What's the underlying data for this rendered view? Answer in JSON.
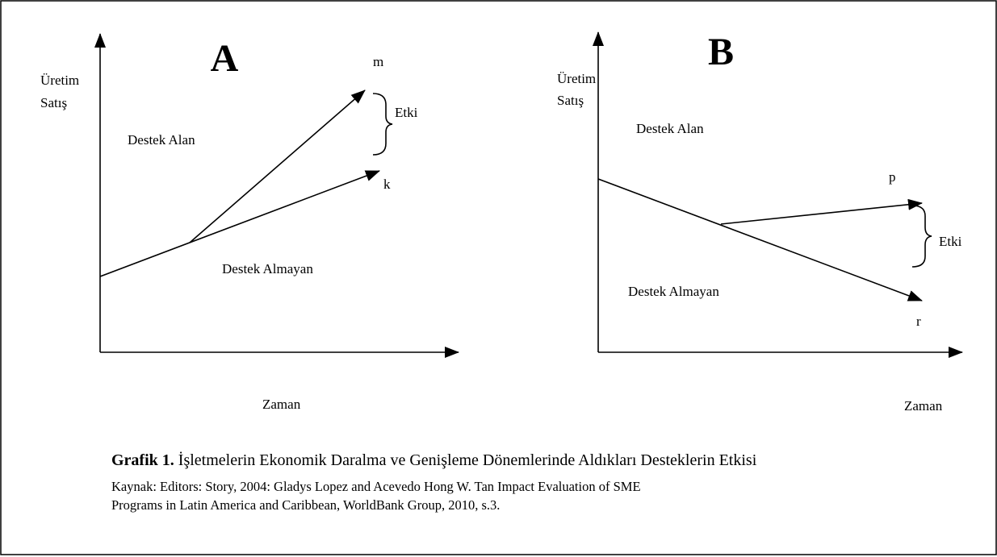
{
  "panels": [
    {
      "label": "A",
      "y_label": [
        "Üretim",
        "Satış"
      ],
      "x_label": "Zaman",
      "upper_region": "Destek Alan",
      "lower_region": "Destek Almayan",
      "upper_end": "m",
      "lower_end": "k",
      "effect": "Etki"
    },
    {
      "label": "B",
      "y_label": [
        "Üretim",
        "Satış"
      ],
      "x_label": "Zaman",
      "upper_region": "Destek Alan",
      "lower_region": "Destek Almayan",
      "upper_end": "p",
      "lower_end": "r",
      "effect": "Etki"
    }
  ],
  "caption": {
    "prefix": "Grafik 1.",
    "text": " İşletmelerin Ekonomik Daralma ve Genişleme Dönemlerinde Aldıkları Desteklerin Etkisi"
  },
  "source": [
    "Kaynak: Editors: Story, 2004: Gladys Lopez and Acevedo Hong W. Tan Impact Evaluation of SME",
    "Programs in Latin America and Caribbean, WorldBank Group, 2010, s.3."
  ]
}
